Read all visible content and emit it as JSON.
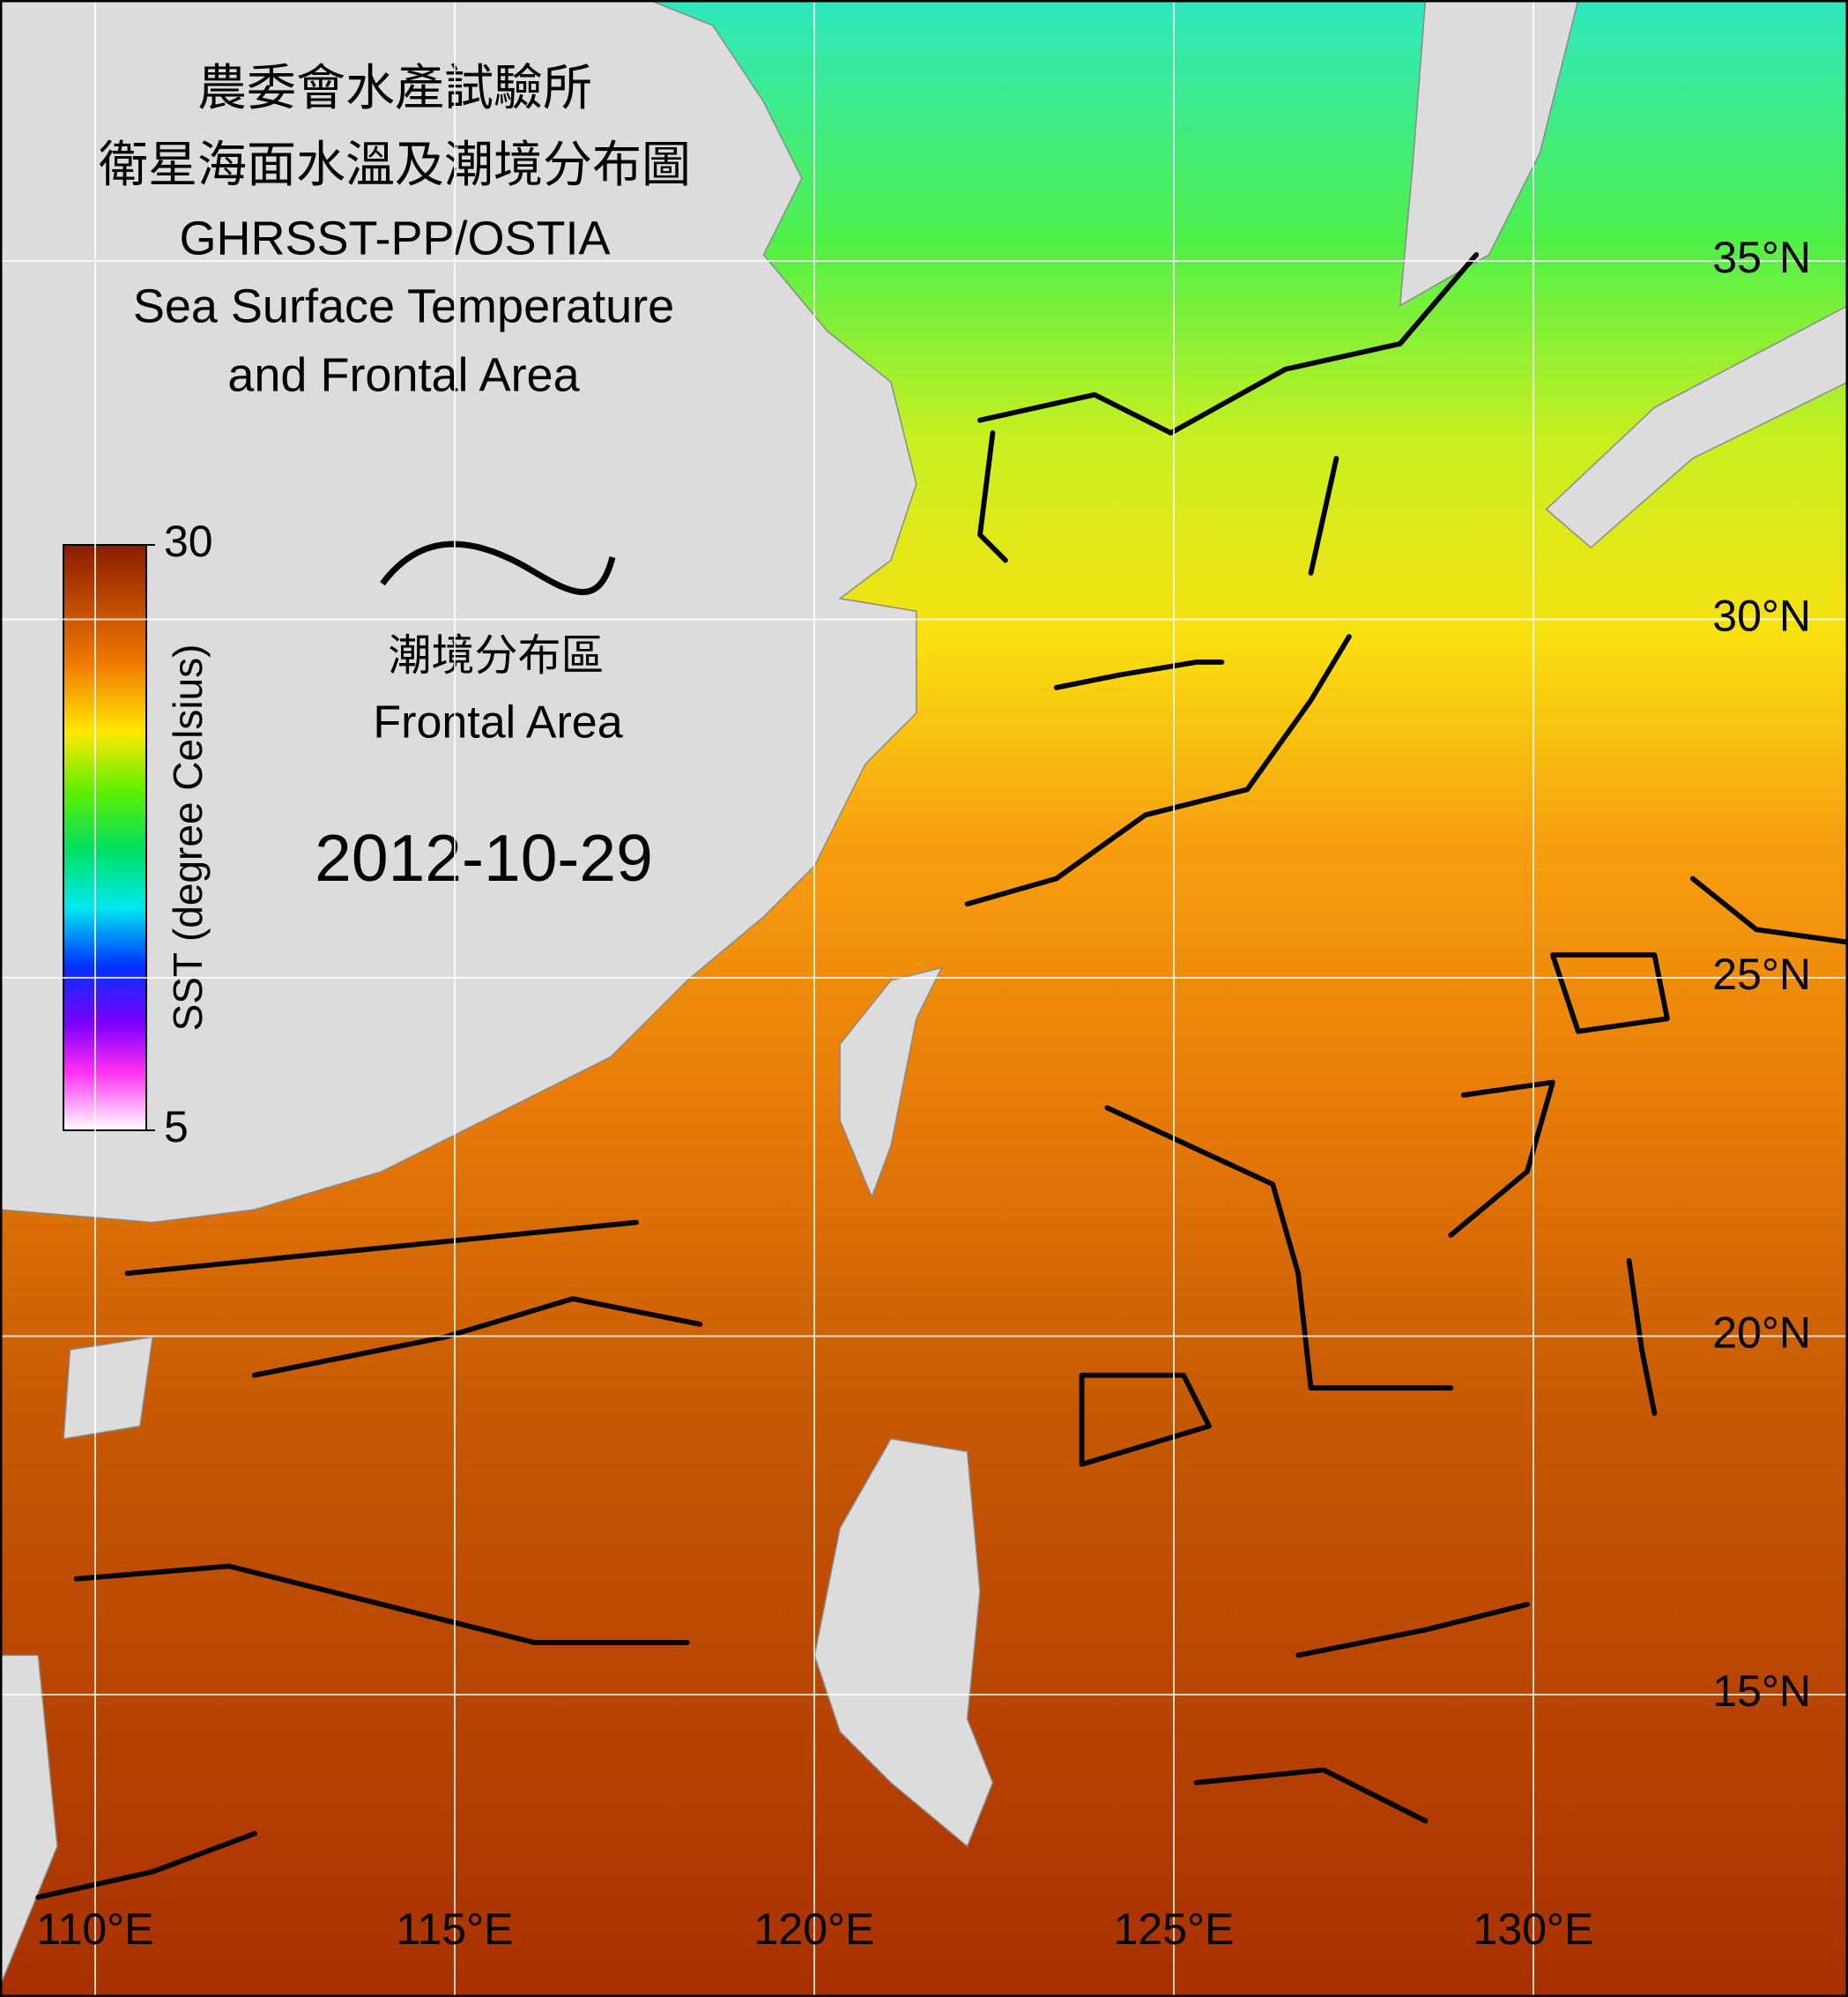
{
  "map": {
    "title": [
      "農委會水產試驗所",
      "衛星海面水溫及潮境分布圖",
      "GHRSST-PP/OSTIA",
      "Sea Surface Temperature",
      "and Frontal Area"
    ],
    "date": "2012-10-29",
    "legend": {
      "label_zh": "潮境分布區",
      "label_en": "Frontal Area"
    },
    "colorbar": {
      "label": "SST (degree Celsius)",
      "ticks": [
        5,
        30
      ]
    },
    "lat_ticks": [
      {
        "value": 35,
        "label": "35°N"
      },
      {
        "value": 30,
        "label": "30°N"
      },
      {
        "value": 25,
        "label": "25°N"
      },
      {
        "value": 20,
        "label": "20°N"
      },
      {
        "value": 15,
        "label": "15°N"
      }
    ],
    "lon_ticks": [
      {
        "value": 110,
        "label": "110°E"
      },
      {
        "value": 115,
        "label": "115°E"
      },
      {
        "value": 120,
        "label": "120°E"
      },
      {
        "value": 125,
        "label": "125°E"
      },
      {
        "value": 130,
        "label": "130°E"
      }
    ]
  }
}
